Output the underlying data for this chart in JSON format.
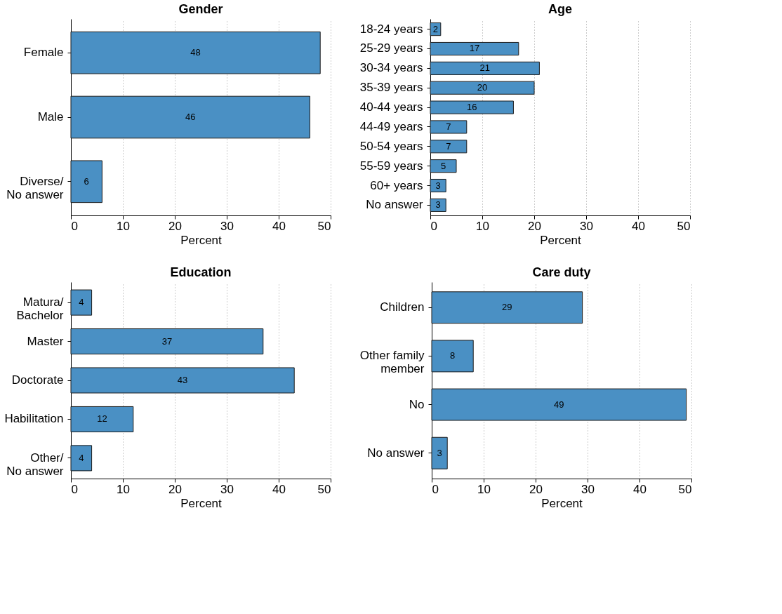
{
  "chart_data": [
    {
      "type": "bar",
      "orientation": "horizontal",
      "title": "Gender",
      "xlabel": "Percent",
      "categories": [
        "Female",
        "Male",
        "Diverse/\nNo answer"
      ],
      "values": [
        48,
        46,
        6
      ],
      "color": "#4a90c4",
      "xlim": [
        0,
        50
      ],
      "xticks": [
        0,
        10,
        20,
        30,
        40,
        50
      ],
      "grid": "x",
      "data_labels": true
    },
    {
      "type": "bar",
      "orientation": "horizontal",
      "title": "Age",
      "xlabel": "Percent",
      "categories": [
        "18-24 years",
        "25-29 years",
        "30-34 years",
        "35-39 years",
        "40-44 years",
        "44-49 years",
        "50-54 years",
        "55-59 years",
        "60+ years",
        "No answer"
      ],
      "values": [
        2,
        17,
        21,
        20,
        16,
        7,
        7,
        5,
        3,
        3
      ],
      "color": "#4a90c4",
      "xlim": [
        0,
        50
      ],
      "xticks": [
        0,
        10,
        20,
        30,
        40,
        50
      ],
      "grid": "x",
      "data_labels": true
    },
    {
      "type": "bar",
      "orientation": "horizontal",
      "title": "Education",
      "xlabel": "Percent",
      "categories": [
        "Matura/\nBachelor",
        "Master",
        "Doctorate",
        "Habilitation",
        "Other/\nNo answer"
      ],
      "values": [
        4,
        37,
        43,
        12,
        4
      ],
      "color": "#4a90c4",
      "xlim": [
        0,
        50
      ],
      "xticks": [
        0,
        10,
        20,
        30,
        40,
        50
      ],
      "grid": "x",
      "data_labels": true
    },
    {
      "type": "bar",
      "orientation": "horizontal",
      "title": "Care duty",
      "xlabel": "Percent",
      "categories": [
        "Children",
        "Other family\nmember",
        "No",
        "No answer"
      ],
      "values": [
        29,
        8,
        49,
        3
      ],
      "color": "#4a90c4",
      "xlim": [
        0,
        50
      ],
      "xticks": [
        0,
        10,
        20,
        30,
        40,
        50
      ],
      "grid": "x",
      "data_labels": true
    }
  ]
}
